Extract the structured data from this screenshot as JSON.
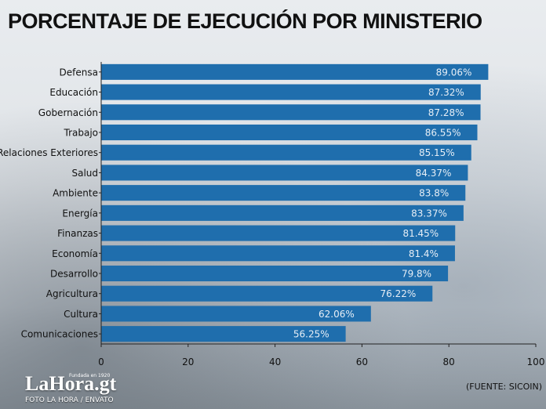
{
  "title": "PORCENTAJE DE EJECUCIÓN POR MINISTERIO",
  "logo": {
    "text": "LaHora.gt",
    "tagline": "Fundada en 1920"
  },
  "photo_credit": "FOTO LA HORA / ENVATO",
  "source": "(FUENTE: SICOIN)",
  "colors": {
    "bar": "#1f6ead",
    "bar_label": "#e6eef6",
    "text": "#111111"
  },
  "chart_data": {
    "type": "bar",
    "orientation": "horizontal",
    "title": "PORCENTAJE DE EJECUCIÓN POR MINISTERIO",
    "categories": [
      "Defensa",
      "Educación",
      "Gobernación",
      "Trabajo",
      "Relaciones Exteriores",
      "Salud",
      "Ambiente",
      "Energía",
      "Finanzas",
      "Economía",
      "Desarrollo",
      "Agricultura",
      "Cultura",
      "Comunicaciones"
    ],
    "values": [
      89.06,
      87.32,
      87.28,
      86.55,
      85.15,
      84.37,
      83.8,
      83.37,
      81.45,
      81.4,
      79.8,
      76.22,
      62.06,
      56.25
    ],
    "value_labels": [
      "89.06%",
      "87.32%",
      "87.28%",
      "86.55%",
      "85.15%",
      "84.37%",
      "83.8%",
      "83.37%",
      "81.45%",
      "81.4%",
      "79.8%",
      "76.22%",
      "62.06%",
      "56.25%"
    ],
    "xlim": [
      0,
      100
    ],
    "xticks": [
      0,
      20,
      40,
      60,
      80,
      100
    ],
    "xlabel": "",
    "ylabel": "",
    "grid": false,
    "legend": "none"
  }
}
